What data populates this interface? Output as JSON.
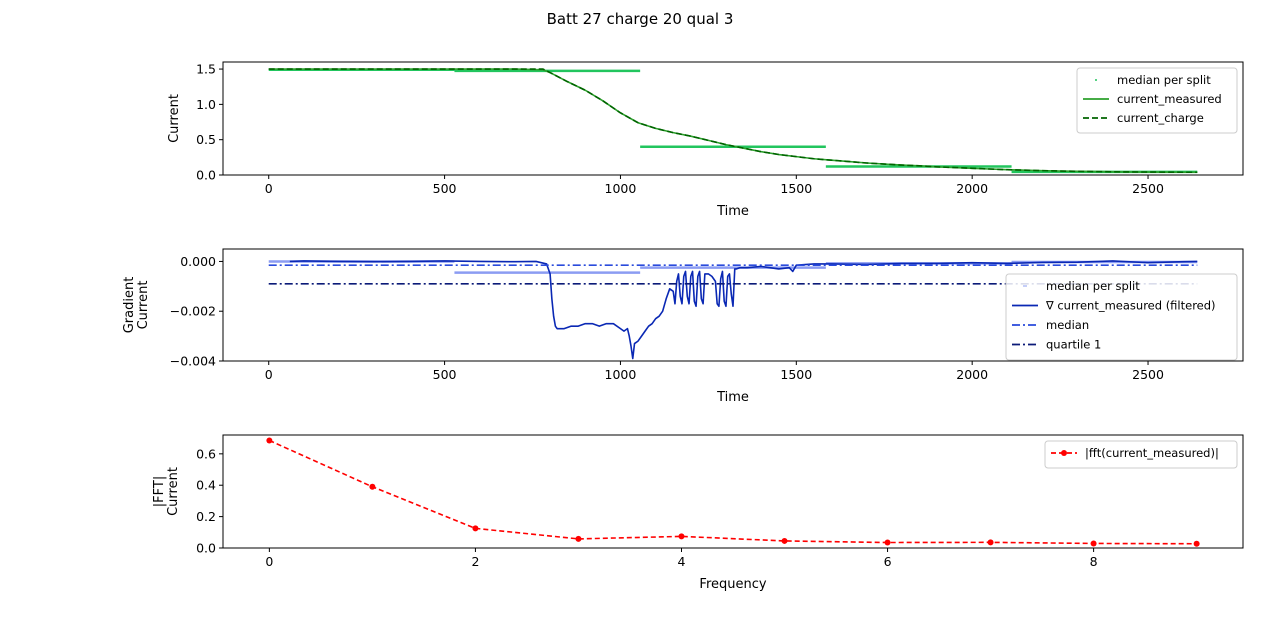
{
  "title": "Batt 27 charge 20 qual 3",
  "chart_data": [
    {
      "type": "line",
      "xlabel": "Time",
      "ylabel": "Current",
      "xlim": [
        -130,
        2770
      ],
      "ylim": [
        0,
        1.6
      ],
      "xticks": [
        0,
        500,
        1000,
        1500,
        2000,
        2500
      ],
      "yticks": [
        0.0,
        0.5,
        1.0,
        1.5
      ],
      "xtick_labels": [
        "0",
        "500",
        "1000",
        "1500",
        "2000",
        "2500"
      ],
      "ytick_labels": [
        "0.0",
        "0.5",
        "1.0",
        "1.5"
      ],
      "legend_position": "top-right",
      "legend": [
        "median per split",
        "current_measured",
        "current_charge"
      ],
      "series": [
        {
          "name": "median per split",
          "color": "#22c55e",
          "style": "segments",
          "segments": [
            {
              "x": [
                0,
                528
              ],
              "y": 1.49
            },
            {
              "x": [
                528,
                1056
              ],
              "y": 1.475
            },
            {
              "x": [
                1056,
                1584
              ],
              "y": 0.4
            },
            {
              "x": [
                1584,
                2112
              ],
              "y": 0.12
            },
            {
              "x": [
                2112,
                2640
              ],
              "y": 0.045
            }
          ]
        },
        {
          "name": "current_measured",
          "color": "#2ca02c",
          "style": "solid",
          "x": [
            0,
            100,
            200,
            300,
            400,
            500,
            600,
            700,
            780,
            800,
            850,
            900,
            950,
            1000,
            1050,
            1100,
            1150,
            1200,
            1250,
            1300,
            1350,
            1400,
            1450,
            1500,
            1550,
            1600,
            1650,
            1700,
            1750,
            1800,
            1850,
            1900,
            1950,
            2000,
            2050,
            2100,
            2150,
            2200,
            2250,
            2300,
            2350,
            2400,
            2450,
            2500,
            2550,
            2600,
            2640
          ],
          "y": [
            1.5,
            1.5,
            1.5,
            1.5,
            1.5,
            1.5,
            1.5,
            1.5,
            1.49,
            1.45,
            1.32,
            1.2,
            1.05,
            0.88,
            0.74,
            0.66,
            0.6,
            0.55,
            0.49,
            0.43,
            0.38,
            0.33,
            0.29,
            0.26,
            0.23,
            0.21,
            0.19,
            0.17,
            0.155,
            0.14,
            0.13,
            0.115,
            0.105,
            0.095,
            0.085,
            0.075,
            0.068,
            0.062,
            0.056,
            0.052,
            0.048,
            0.045,
            0.043,
            0.042,
            0.04,
            0.039,
            0.039
          ]
        },
        {
          "name": "current_charge",
          "color": "#006400",
          "style": "dashed",
          "x": [
            0,
            100,
            200,
            300,
            400,
            500,
            600,
            700,
            780,
            800,
            850,
            900,
            950,
            1000,
            1050,
            1100,
            1150,
            1200,
            1250,
            1300,
            1350,
            1400,
            1450,
            1500,
            1550,
            1600,
            1650,
            1700,
            1750,
            1800,
            1850,
            1900,
            1950,
            2000,
            2050,
            2100,
            2150,
            2200,
            2250,
            2300,
            2350,
            2400,
            2450,
            2500,
            2550,
            2600,
            2640
          ],
          "y": [
            1.5,
            1.5,
            1.5,
            1.5,
            1.5,
            1.5,
            1.5,
            1.5,
            1.5,
            1.45,
            1.32,
            1.2,
            1.05,
            0.88,
            0.74,
            0.66,
            0.6,
            0.55,
            0.49,
            0.43,
            0.38,
            0.33,
            0.29,
            0.26,
            0.23,
            0.21,
            0.19,
            0.17,
            0.155,
            0.14,
            0.13,
            0.115,
            0.105,
            0.095,
            0.085,
            0.075,
            0.068,
            0.062,
            0.056,
            0.052,
            0.048,
            0.045,
            0.043,
            0.042,
            0.04,
            0.039,
            0.039
          ]
        }
      ]
    },
    {
      "type": "line",
      "xlabel": "Time",
      "ylabel": "Gradient\nCurrent",
      "xlim": [
        -130,
        2770
      ],
      "ylim": [
        -0.004,
        0.0005
      ],
      "xticks": [
        0,
        500,
        1000,
        1500,
        2000,
        2500
      ],
      "yticks": [
        0.0,
        -0.002,
        -0.004
      ],
      "xtick_labels": [
        "0",
        "500",
        "1000",
        "1500",
        "2000",
        "2500"
      ],
      "ytick_labels": [
        "0.000",
        "−0.002",
        "−0.004"
      ],
      "legend_position": "center-right",
      "legend": [
        "median per split",
        "∇ current_measured (filtered)",
        "median",
        "quartile 1"
      ],
      "series": [
        {
          "name": "median per split",
          "color": "#8b9cf2",
          "style": "segments",
          "segments": [
            {
              "x": [
                0,
                528
              ],
              "y": 0.0
            },
            {
              "x": [
                528,
                1056
              ],
              "y": -0.00045
            },
            {
              "x": [
                1056,
                1584
              ],
              "y": -0.00025
            },
            {
              "x": [
                1584,
                2112
              ],
              "y": -8e-05
            },
            {
              "x": [
                2112,
                2640
              ],
              "y": -2e-05
            }
          ]
        },
        {
          "name": "∇ current_measured (filtered)",
          "color": "#0a28b4",
          "style": "solid",
          "x": [
            60,
            100,
            200,
            300,
            400,
            500,
            600,
            700,
            760,
            790,
            800,
            805,
            810,
            815,
            820,
            840,
            860,
            880,
            900,
            920,
            940,
            960,
            980,
            1000,
            1010,
            1020,
            1025,
            1030,
            1035,
            1040,
            1050,
            1060,
            1070,
            1080,
            1090,
            1100,
            1110,
            1120,
            1130,
            1140,
            1150,
            1155,
            1160,
            1165,
            1170,
            1175,
            1180,
            1185,
            1190,
            1195,
            1200,
            1205,
            1210,
            1215,
            1220,
            1225,
            1230,
            1235,
            1240,
            1250,
            1260,
            1270,
            1275,
            1280,
            1285,
            1290,
            1295,
            1300,
            1305,
            1310,
            1315,
            1320,
            1325,
            1330,
            1340,
            1360,
            1400,
            1450,
            1480,
            1490,
            1500,
            1550,
            1600,
            1700,
            1800,
            1900,
            2000,
            2100,
            2200,
            2300,
            2400,
            2500,
            2600,
            2640
          ],
          "y": [
            0.0,
            2e-05,
            0.0,
            -1e-05,
            0.0,
            2e-05,
            0.0,
            -1e-05,
            0.0,
            -0.0001,
            -0.0005,
            -0.0015,
            -0.0022,
            -0.0026,
            -0.0027,
            -0.0027,
            -0.0026,
            -0.0026,
            -0.0025,
            -0.0025,
            -0.0026,
            -0.0025,
            -0.0025,
            -0.0027,
            -0.0028,
            -0.0027,
            -0.003,
            -0.0034,
            -0.0039,
            -0.0033,
            -0.0032,
            -0.003,
            -0.0028,
            -0.0026,
            -0.0025,
            -0.0023,
            -0.0022,
            -0.002,
            -0.0015,
            -0.0011,
            -0.0012,
            -0.0017,
            -0.0008,
            -0.0005,
            -0.0014,
            -0.0017,
            -0.0006,
            -0.0004,
            -0.0014,
            -0.0017,
            -0.0006,
            -0.0004,
            -0.0016,
            -0.0018,
            -0.0006,
            -0.0004,
            -0.0015,
            -0.0017,
            -0.0005,
            -0.0005,
            -0.0006,
            -0.0008,
            -0.0017,
            -0.0018,
            -0.0007,
            -0.0004,
            -0.0016,
            -0.0018,
            -0.0006,
            -0.0005,
            -0.0013,
            -0.0018,
            -0.0003,
            -0.0003,
            -0.00025,
            -0.00025,
            -0.0002,
            -0.0003,
            -0.00025,
            -0.0004,
            -0.00015,
            -0.0001,
            -0.0001,
            -0.00012,
            -8e-05,
            -8e-05,
            -5e-05,
            -8e-05,
            -4e-05,
            -3e-05,
            2e-05,
            -5e-05,
            -1e-05,
            0.0
          ]
        },
        {
          "name": "median",
          "color": "#2a4bdc",
          "style": "dashdot",
          "x": [
            0,
            2640
          ],
          "y": [
            -0.00015,
            -0.00015
          ]
        },
        {
          "name": "quartile 1",
          "color": "#0b1a78",
          "style": "dashdot",
          "x": [
            0,
            2640
          ],
          "y": [
            -0.0009,
            -0.0009
          ]
        }
      ]
    },
    {
      "type": "line",
      "xlabel": "Frequency",
      "ylabel": "|FFT|\nCurrent",
      "xlim": [
        -0.45,
        9.45
      ],
      "ylim": [
        0,
        0.72
      ],
      "xticks": [
        0,
        2,
        4,
        6,
        8
      ],
      "yticks": [
        0.0,
        0.2,
        0.4,
        0.6
      ],
      "xtick_labels": [
        "0",
        "2",
        "4",
        "6",
        "8"
      ],
      "ytick_labels": [
        "0.0",
        "0.2",
        "0.4",
        "0.6"
      ],
      "legend_position": "top-right",
      "legend": [
        "|fft(current_measured)|"
      ],
      "series": [
        {
          "name": "|fft(current_measured)|",
          "color": "#ff0000",
          "style": "dashed-markers",
          "x": [
            0,
            1,
            2,
            3,
            4,
            5,
            6,
            7,
            8,
            9
          ],
          "y": [
            0.685,
            0.39,
            0.125,
            0.058,
            0.074,
            0.045,
            0.035,
            0.036,
            0.029,
            0.027
          ]
        }
      ]
    }
  ]
}
